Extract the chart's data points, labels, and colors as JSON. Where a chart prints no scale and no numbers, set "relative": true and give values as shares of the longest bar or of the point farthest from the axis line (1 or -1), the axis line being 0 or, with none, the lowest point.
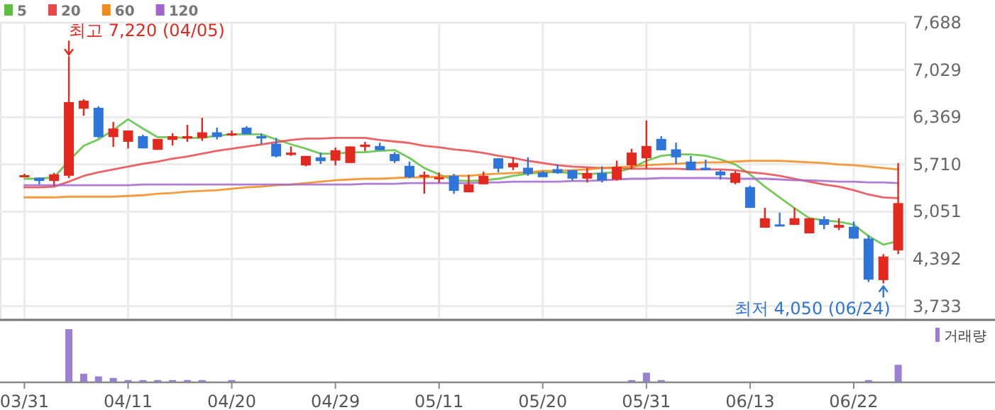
{
  "chart_data": [
    {
      "type": "candlestick",
      "categories": [
        null,
        null,
        null,
        null,
        null,
        null,
        null,
        null,
        null,
        null,
        null,
        null,
        null,
        null,
        null,
        null,
        null,
        null,
        null,
        null,
        null,
        null,
        null,
        null,
        null,
        null,
        null,
        null,
        null,
        null,
        null,
        null,
        null,
        null,
        null,
        null,
        null,
        null,
        null,
        null,
        null,
        null,
        null,
        null,
        null,
        null,
        null,
        null,
        null,
        null,
        null,
        null,
        null,
        null,
        null,
        null,
        null,
        null,
        null,
        null
      ],
      "ohlc": [
        [
          5545,
          5580,
          5530,
          5560
        ],
        [
          5525,
          5525,
          5433,
          5479
        ],
        [
          5479,
          5592,
          5413,
          5572
        ],
        [
          5552,
          7220,
          5519,
          6580
        ],
        [
          6488,
          6620,
          6389,
          6600
        ],
        [
          6501,
          6521,
          6079,
          6092
        ],
        [
          6092,
          6303,
          5954,
          6211
        ],
        [
          6026,
          6184,
          5934,
          6184
        ],
        [
          6105,
          6125,
          5934,
          5934
        ],
        [
          5914,
          6066,
          5914,
          6066
        ],
        [
          6053,
          6145,
          5974,
          6105
        ],
        [
          6072,
          6264,
          6026,
          6105
        ],
        [
          6079,
          6362,
          6039,
          6158
        ],
        [
          6158,
          6224,
          6059,
          6092
        ],
        [
          6138,
          6184,
          6105,
          6145
        ],
        [
          6224,
          6244,
          6132,
          6132
        ],
        [
          6105,
          6138,
          5993,
          6072
        ],
        [
          5999,
          6079,
          5809,
          5822
        ],
        [
          5842,
          5961,
          5829,
          5875
        ],
        [
          5697,
          5829,
          5684,
          5829
        ],
        [
          5809,
          5875,
          5717,
          5756
        ],
        [
          5763,
          5947,
          5697,
          5908
        ],
        [
          5730,
          5961,
          5730,
          5961
        ],
        [
          5954,
          6026,
          5895,
          5987
        ],
        [
          5967,
          6013,
          5908,
          5908
        ],
        [
          5855,
          5881,
          5730,
          5756
        ],
        [
          5690,
          5750,
          5519,
          5532
        ],
        [
          5558,
          5611,
          5301,
          5565
        ],
        [
          5525,
          5598,
          5453,
          5532
        ],
        [
          5552,
          5578,
          5301,
          5341
        ],
        [
          5321,
          5565,
          5321,
          5433
        ],
        [
          5433,
          5611,
          5433,
          5552
        ],
        [
          5796,
          5796,
          5598,
          5651
        ],
        [
          5670,
          5809,
          5631,
          5730
        ],
        [
          5664,
          5809,
          5552,
          5578
        ],
        [
          5598,
          5618,
          5532,
          5532
        ],
        [
          5644,
          5710,
          5578,
          5591
        ],
        [
          5631,
          5631,
          5486,
          5512
        ],
        [
          5512,
          5664,
          5459,
          5591
        ],
        [
          5591,
          5684,
          5459,
          5486
        ],
        [
          5499,
          5763,
          5486,
          5677
        ],
        [
          5697,
          5927,
          5644,
          5875
        ],
        [
          5796,
          6323,
          5651,
          5967
        ],
        [
          6066,
          6105,
          5908,
          5908
        ],
        [
          5921,
          6013,
          5717,
          5809
        ],
        [
          5750,
          5829,
          5631,
          5631
        ],
        [
          5664,
          5776,
          5631,
          5631
        ],
        [
          5611,
          5631,
          5499,
          5558
        ],
        [
          5453,
          5618,
          5433,
          5591
        ],
        [
          5394,
          5413,
          5104,
          5104
        ],
        [
          4827,
          5104,
          4827,
          4959
        ],
        [
          4873,
          5038,
          4853,
          4853
        ],
        [
          4866,
          5104,
          4866,
          4959
        ],
        [
          4748,
          4959,
          4748,
          4959
        ],
        [
          4946,
          4985,
          4807,
          4866
        ],
        [
          4827,
          4959,
          4794,
          4866
        ],
        [
          4840,
          4913,
          4675,
          4675
        ],
        [
          4675,
          4721,
          4069,
          4102
        ],
        [
          4096,
          4458,
          4050,
          4425
        ],
        [
          4511,
          5730,
          4458,
          5170
        ]
      ],
      "series": [
        {
          "name": "5",
          "type": "line",
          "color": "#5cbf3e",
          "values": [
            5510,
            5510,
            5530,
            5760,
            5970,
            6060,
            6190,
            6340,
            6210,
            6090,
            6090,
            6080,
            6080,
            6110,
            6130,
            6130,
            6130,
            6060,
            5990,
            5930,
            5860,
            5860,
            5880,
            5880,
            5900,
            5910,
            5800,
            5660,
            5570,
            5490,
            5480,
            5490,
            5510,
            5550,
            5580,
            5600,
            5600,
            5590,
            5570,
            5590,
            5600,
            5660,
            5760,
            5830,
            5850,
            5850,
            5830,
            5780,
            5710,
            5570,
            5400,
            5250,
            5100,
            4960,
            4930,
            4910,
            4870,
            4710,
            4590,
            4640
          ]
        },
        {
          "name": "20",
          "type": "line",
          "color": "#e8474c",
          "values": [
            5390,
            5390,
            5400,
            5470,
            5550,
            5600,
            5640,
            5680,
            5720,
            5750,
            5790,
            5820,
            5860,
            5900,
            5930,
            5960,
            5990,
            6020,
            6050,
            6070,
            6070,
            6080,
            6080,
            6080,
            6050,
            6030,
            6010,
            5970,
            5950,
            5920,
            5900,
            5870,
            5830,
            5800,
            5760,
            5730,
            5700,
            5680,
            5670,
            5660,
            5660,
            5650,
            5650,
            5650,
            5650,
            5640,
            5640,
            5640,
            5630,
            5600,
            5580,
            5550,
            5510,
            5470,
            5430,
            5400,
            5350,
            5290,
            5250,
            5240
          ]
        },
        {
          "name": "60",
          "type": "line",
          "color": "#f28a1c",
          "values": [
            5250,
            5250,
            5250,
            5260,
            5260,
            5260,
            5260,
            5270,
            5280,
            5300,
            5310,
            5330,
            5340,
            5350,
            5370,
            5390,
            5400,
            5420,
            5430,
            5450,
            5470,
            5490,
            5500,
            5510,
            5510,
            5520,
            5530,
            5530,
            5540,
            5550,
            5550,
            5570,
            5580,
            5590,
            5600,
            5620,
            5620,
            5630,
            5640,
            5660,
            5670,
            5680,
            5700,
            5710,
            5720,
            5730,
            5740,
            5740,
            5750,
            5760,
            5760,
            5760,
            5750,
            5740,
            5730,
            5710,
            5700,
            5680,
            5660,
            5640
          ]
        },
        {
          "name": "120",
          "type": "line",
          "color": "#a066cc",
          "values": [
            5420,
            5420,
            5420,
            5420,
            5420,
            5420,
            5420,
            5420,
            5430,
            5430,
            5430,
            5430,
            5430,
            5430,
            5430,
            5430,
            5430,
            5430,
            5430,
            5430,
            5430,
            5430,
            5430,
            5440,
            5440,
            5440,
            5450,
            5450,
            5450,
            5450,
            5450,
            5460,
            5460,
            5470,
            5470,
            5470,
            5470,
            5480,
            5480,
            5490,
            5500,
            5510,
            5510,
            5520,
            5520,
            5520,
            5520,
            5520,
            5510,
            5510,
            5510,
            5500,
            5490,
            5490,
            5480,
            5470,
            5470,
            5460,
            5460,
            5450
          ]
        }
      ],
      "ylim": [
        3550,
        7688
      ],
      "yticks": [
        {
          "value": 3733,
          "label": "3,733"
        },
        {
          "value": 4392,
          "label": "4,392"
        },
        {
          "value": 5051,
          "label": "5,051"
        },
        {
          "value": 5710,
          "label": "5,710"
        },
        {
          "value": 6369,
          "label": "6,369"
        },
        {
          "value": 7029,
          "label": "7,029"
        },
        {
          "value": 7688,
          "label": "7,688"
        }
      ],
      "annotations": [
        "최고 7,220 (04/05)",
        "최저 4,050 (06/24)"
      ],
      "grid": true,
      "legend": "top left",
      "tick_labels": "y"
    },
    {
      "type": "bar",
      "relative": true,
      "categories": [
        "03/31",
        null,
        null,
        null,
        null,
        null,
        null,
        "04/11",
        null,
        null,
        null,
        null,
        null,
        null,
        "04/20",
        null,
        null,
        null,
        null,
        null,
        null,
        "04/29",
        null,
        null,
        null,
        null,
        null,
        null,
        "05/11",
        null,
        null,
        null,
        null,
        null,
        null,
        "05/20",
        null,
        null,
        null,
        null,
        null,
        null,
        "05/31",
        null,
        null,
        null,
        null,
        null,
        null,
        "06/13",
        null,
        null,
        null,
        null,
        null,
        null,
        "06/22",
        null,
        null,
        null
      ],
      "series": [
        {
          "name": "거래량",
          "color": "#9b7fd0",
          "values": [
            0,
            0,
            0,
            1,
            0.15,
            0.1,
            0.07,
            0.03,
            0.03,
            0.03,
            0.03,
            0.03,
            0.03,
            0,
            0.03,
            0,
            0,
            0,
            0,
            0,
            0,
            0,
            0,
            0,
            0,
            0,
            0,
            0,
            0,
            0,
            0,
            0,
            0,
            0,
            0,
            0,
            0,
            0,
            0,
            0,
            0,
            0.03,
            0.17,
            0.03,
            0,
            0,
            0,
            0,
            0,
            0,
            0,
            0,
            0,
            0,
            0,
            0,
            0,
            0.03,
            0,
            0.32
          ]
        }
      ],
      "legend": "top right",
      "tick_labels": "x"
    }
  ]
}
